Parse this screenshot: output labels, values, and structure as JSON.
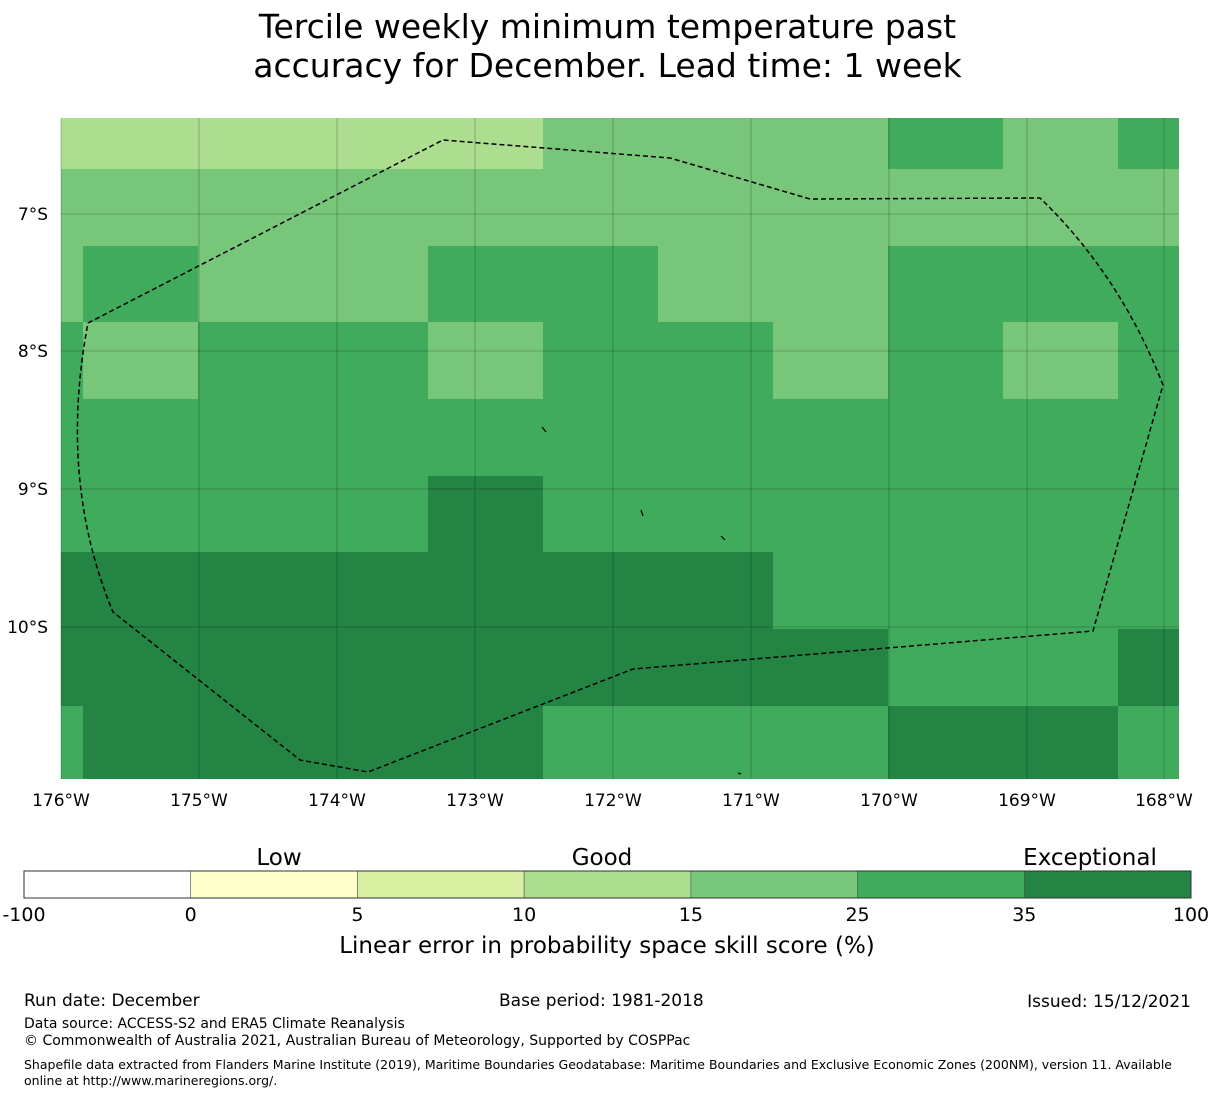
{
  "title": {
    "line1": "Tercile weekly minimum temperature past",
    "line2": "accuracy for December. Lead time: 1 week"
  },
  "map": {
    "x_ticks": [
      "176°W",
      "175°W",
      "174°W",
      "173°W",
      "172°W",
      "171°W",
      "170°W",
      "169°W",
      "168°W"
    ],
    "y_ticks": [
      "7°S",
      "8°S",
      "9°S",
      "10°S"
    ],
    "lon_range": [
      -176,
      -168
    ],
    "lat_range_top_to_bottom": [
      -6.3,
      -11.1
    ],
    "boundary_style": "dashed black",
    "grid": true,
    "cells_description": "skill category per grid cell",
    "category_colors": {
      "light": "#addd8e",
      "medium": "#78c679",
      "strong": "#41ab5d",
      "darkest": "#238443"
    }
  },
  "colorbar": {
    "category_labels": [
      "Low",
      "Good",
      "Exceptional"
    ],
    "ticks": [
      "-100",
      "0",
      "5",
      "10",
      "15",
      "25",
      "35",
      "100"
    ],
    "colors": [
      "#ffffff",
      "#ffffcc",
      "#d9f0a3",
      "#addd8e",
      "#78c679",
      "#41ab5d",
      "#238443"
    ],
    "label": "Linear error in probability space skill score (%)"
  },
  "footer": {
    "run_date": "Run date: December",
    "base_period": "Base period: 1981-2018",
    "issued": "Issued: 15/12/2021",
    "data_source": "Data source: ACCESS-S2 and ERA5 Climate Reanalysis",
    "copyright": "© Commonwealth of Australia 2021, Australian Bureau of Meteorology, Supported by COSPPac",
    "shapefile": "Shapefile data extracted from Flanders Marine Institute (2019), Maritime Boundaries Geodatabase: Maritime Boundaries and Exclusive Economic Zones (200NM), version 11. Available online at http://www.marineregions.org/."
  }
}
